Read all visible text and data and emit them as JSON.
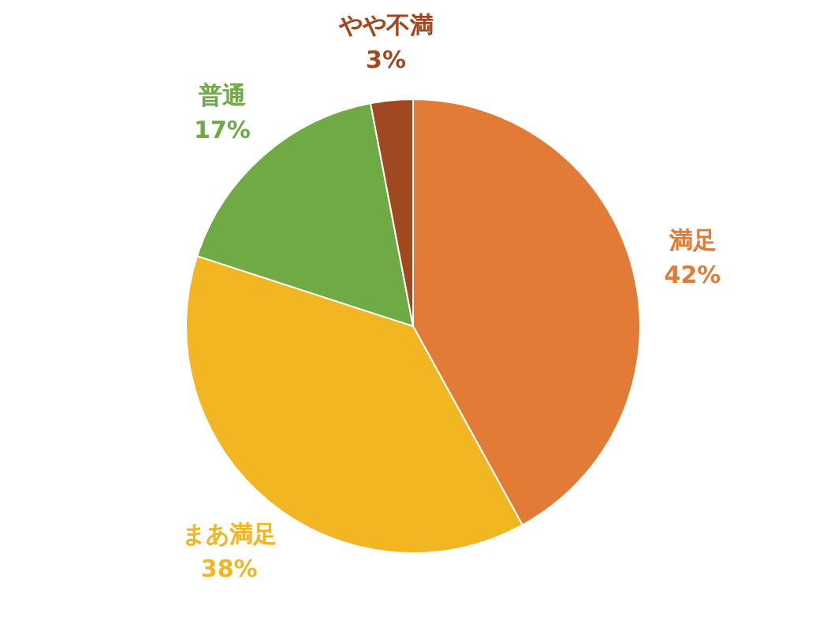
{
  "chart_data": {
    "type": "pie",
    "categories": [
      "満足",
      "まあ満足",
      "普通",
      "やや不満"
    ],
    "values": [
      42,
      38,
      17,
      3
    ],
    "value_labels": [
      "42%",
      "38%",
      "17%",
      "3%"
    ],
    "colors": [
      "#e27b35",
      "#f2b623",
      "#6faa45",
      "#a0481f"
    ]
  }
}
